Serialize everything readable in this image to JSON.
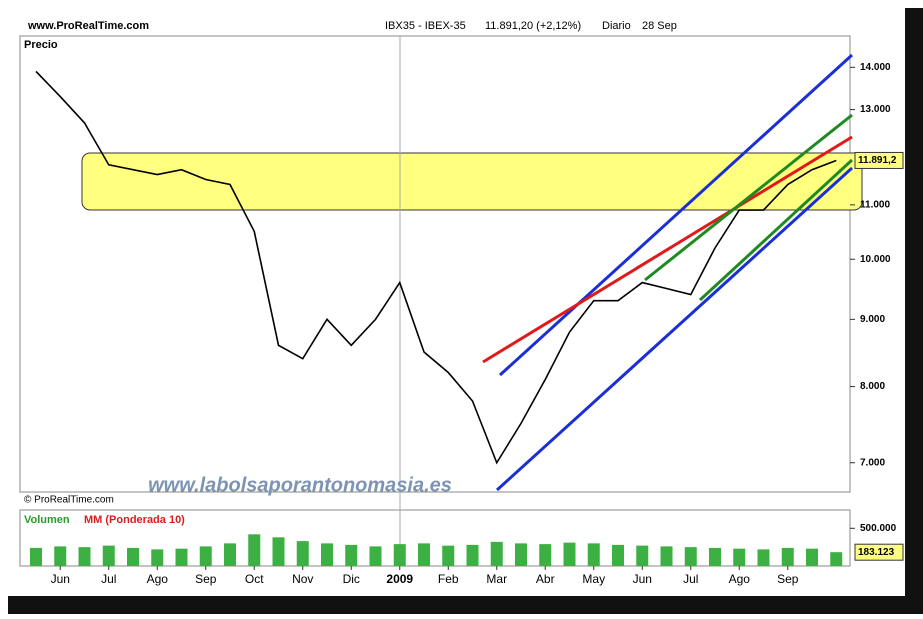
{
  "header": {
    "site": "www.ProRealTime.com",
    "instrument": "IBX35 - IBEX-35",
    "quote": "11.891,20 (+2,12%)",
    "period": "Diario",
    "date": "28 Sep"
  },
  "watermark": "www.labolsaporantonomasia.es",
  "copyright": "© ProRealTime.com",
  "chart_data": [
    {
      "type": "line",
      "title": "Precio",
      "log_scale": true,
      "color": "#000000",
      "categories": [
        null,
        "Jun",
        null,
        "Jul",
        null,
        "Ago",
        null,
        "Sep",
        null,
        "Oct",
        null,
        "Nov",
        null,
        "Dic",
        null,
        "2009",
        null,
        "Feb",
        null,
        "Mar",
        null,
        "Abr",
        null,
        "May",
        null,
        "Jun",
        null,
        "Jul",
        null,
        "Ago",
        null,
        "Sep",
        null,
        null
      ],
      "values": [
        13900,
        13300,
        12700,
        11800,
        11700,
        11600,
        11700,
        11500,
        11400,
        10500,
        8600,
        8400,
        9000,
        8600,
        9000,
        9600,
        8500,
        8200,
        7800,
        7000,
        7500,
        8100,
        8800,
        9300,
        9300,
        9600,
        9500,
        9400,
        10200,
        10900,
        10900,
        11400,
        11700,
        11891.2
      ],
      "ylim": [
        6650,
        14790
      ],
      "yticks": [
        {
          "value": 7000,
          "label": "7.000"
        },
        {
          "value": 8000,
          "label": "8.000"
        },
        {
          "value": 9000,
          "label": "9.000"
        },
        {
          "value": 10000,
          "label": "10.000"
        },
        {
          "value": 11000,
          "label": "11.000"
        },
        {
          "value": 13000,
          "label": "13.000"
        },
        {
          "value": 14000,
          "label": "14.000"
        }
      ],
      "last_value": 11891.2,
      "last_label": "11.891,2"
    },
    {
      "type": "bar",
      "title": "Volumen",
      "subtitle": "MM (Ponderada 10)",
      "color": "#3cb043",
      "values": [
        240000,
        260000,
        250000,
        270000,
        240000,
        220000,
        230000,
        260000,
        300000,
        420000,
        380000,
        330000,
        300000,
        280000,
        260000,
        290000,
        300000,
        270000,
        280000,
        320000,
        300000,
        290000,
        310000,
        300000,
        280000,
        270000,
        260000,
        250000,
        240000,
        230000,
        220000,
        240000,
        230000,
        183123
      ],
      "ylim": [
        0,
        716000
      ],
      "yticks": [
        {
          "value": 500000,
          "label": "500.000"
        }
      ],
      "last_value": 183123,
      "last_label": "183.123"
    }
  ]
}
